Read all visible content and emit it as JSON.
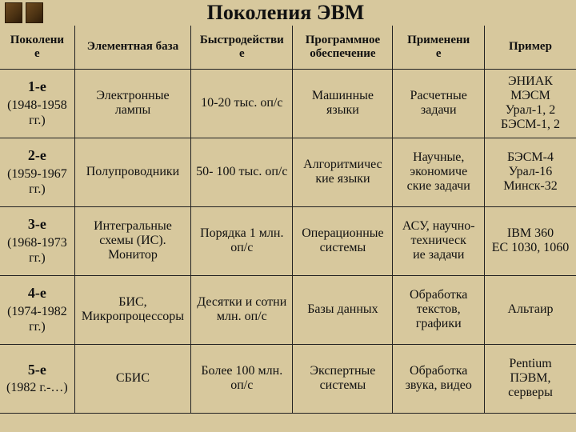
{
  "title": "Поколения ЭВМ",
  "colors": {
    "background": "#d7c89d",
    "text": "#111",
    "border": "#222"
  },
  "columns": [
    {
      "key": "gen",
      "label": "Поколени\nе"
    },
    {
      "key": "base",
      "label": "Элементная база"
    },
    {
      "key": "speed",
      "label": "Быстродействи\nе"
    },
    {
      "key": "soft",
      "label": "Программное обеспечение"
    },
    {
      "key": "use",
      "label": "Применени\nе"
    },
    {
      "key": "ex",
      "label": "Пример"
    }
  ],
  "rows": [
    {
      "gen_name": "1-е",
      "gen_years": "(1948-1958 гг.)",
      "base": "Электронные лампы",
      "speed": "10-20 тыс. оп/с",
      "soft": "Машинные языки",
      "use": "Расчетные задачи",
      "ex": "ЭНИАК\nМЭСМ\nУрал-1, 2\nБЭСМ-1, 2"
    },
    {
      "gen_name": "2-е",
      "gen_years": "(1959-1967 гг.)",
      "base": "Полупроводники",
      "speed": "50- 100 тыс. оп/с",
      "soft": "Алгоритмичес\nкие языки",
      "use": "Научные, экономиче\nские задачи",
      "ex": "БЭСМ-4\nУрал-16\nМинск-32"
    },
    {
      "gen_name": "3-е",
      "gen_years": "(1968-1973 гг.)",
      "base": "Интегральные схемы (ИС). Монитор",
      "speed": "Порядка 1 млн. оп/с",
      "soft": "Операционные системы",
      "use": "АСУ, научно-техническ\nие задачи",
      "ex": "IBM 360\nЕС 1030, 1060"
    },
    {
      "gen_name": "4-е",
      "gen_years": "(1974-1982 гг.)",
      "base": "БИС, Микропроцессоры",
      "speed": "Десятки и сотни млн. оп/с",
      "soft": "Базы данных",
      "use": "Обработка текстов, графики",
      "ex": "Альтаир"
    },
    {
      "gen_name": "5-е",
      "gen_years": "(1982 г.-…)",
      "base": "СБИС",
      "speed": "Более 100 млн. оп/с",
      "soft": "Экспертные системы",
      "use": "Обработка звука, видео",
      "ex": "Pentium ПЭВМ, серверы"
    }
  ]
}
